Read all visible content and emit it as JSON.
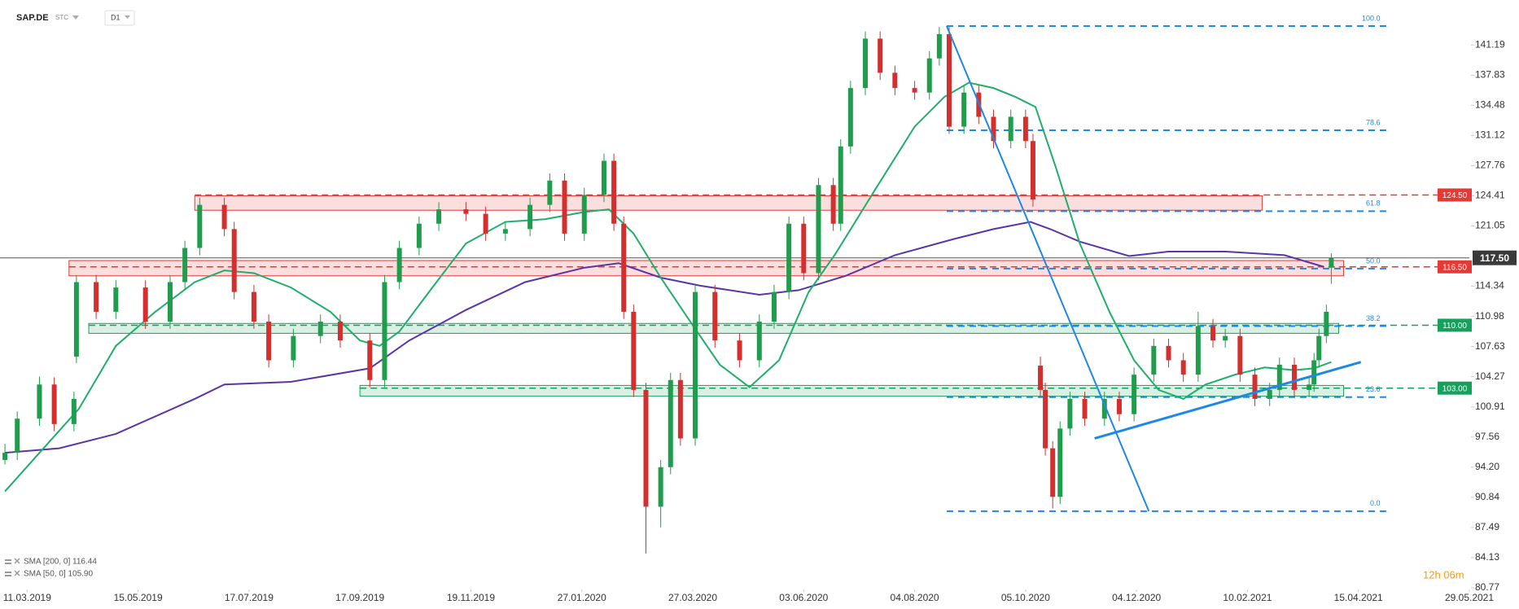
{
  "chart_data": {
    "type": "candlestick",
    "title": "SAP.DE",
    "source": "STC",
    "interval": "D1",
    "countdown": "12h 06m",
    "xlim": [
      -11,
      585
    ],
    "ylim": [
      80.77,
      146.2
    ],
    "xticks": [
      {
        "value": 0,
        "label": "11.03.2019"
      },
      {
        "value": 45,
        "label": "15.05.2019"
      },
      {
        "value": 90,
        "label": "17.07.2019"
      },
      {
        "value": 135,
        "label": "17.09.2019"
      },
      {
        "value": 180,
        "label": "19.11.2019"
      },
      {
        "value": 225,
        "label": "27.01.2020"
      },
      {
        "value": 270,
        "label": "27.03.2020"
      },
      {
        "value": 315,
        "label": "03.06.2020"
      },
      {
        "value": 360,
        "label": "04.08.2020"
      },
      {
        "value": 405,
        "label": "05.10.2020"
      },
      {
        "value": 450,
        "label": "04.12.2020"
      },
      {
        "value": 495,
        "label": "10.02.2021"
      },
      {
        "value": 540,
        "label": "15.04.2021"
      },
      {
        "value": 585,
        "label": "29.05.2021"
      }
    ],
    "yticks": [
      141.19,
      137.83,
      134.48,
      131.12,
      127.76,
      124.41,
      121.05,
      114.34,
      110.98,
      107.63,
      104.27,
      100.91,
      97.56,
      {
        "value": 94.2,
        "label": "94.20"
      },
      90.84,
      87.49,
      84.13,
      80.77
    ],
    "up_color": "#1f9d4c",
    "down_color": "#d32f2f",
    "candles": [
      {
        "x": -9,
        "open": 95.0,
        "high": 96.8,
        "low": 94.5,
        "close": 95.8
      },
      {
        "x": -4,
        "open": 95.8,
        "high": 100.4,
        "low": 95.0,
        "close": 99.6
      },
      {
        "x": 5,
        "open": 99.6,
        "high": 104.3,
        "low": 98.8,
        "close": 103.4
      },
      {
        "x": 11,
        "open": 103.4,
        "high": 104.2,
        "low": 98.2,
        "close": 99.0
      },
      {
        "x": 19,
        "open": 99.0,
        "high": 102.6,
        "low": 98.2,
        "close": 101.8
      },
      {
        "x": 20,
        "open": 106.5,
        "high": 115.6,
        "low": 105.8,
        "close": 114.8
      },
      {
        "x": 28,
        "open": 114.8,
        "high": 115.6,
        "low": 110.7,
        "close": 111.5
      },
      {
        "x": 36,
        "open": 111.5,
        "high": 115.0,
        "low": 110.7,
        "close": 114.2
      },
      {
        "x": 48,
        "open": 114.2,
        "high": 115.0,
        "low": 109.6,
        "close": 110.4
      },
      {
        "x": 58,
        "open": 110.4,
        "high": 115.6,
        "low": 109.6,
        "close": 114.8
      },
      {
        "x": 64,
        "open": 114.8,
        "high": 119.4,
        "low": 114.0,
        "close": 118.6
      },
      {
        "x": 70,
        "open": 118.6,
        "high": 124.2,
        "low": 117.8,
        "close": 123.4
      },
      {
        "x": 80,
        "open": 123.4,
        "high": 124.2,
        "low": 119.9,
        "close": 120.7
      },
      {
        "x": 84,
        "open": 120.7,
        "high": 121.5,
        "low": 112.9,
        "close": 113.7
      },
      {
        "x": 92,
        "open": 113.7,
        "high": 114.5,
        "low": 109.6,
        "close": 110.4
      },
      {
        "x": 98,
        "open": 110.4,
        "high": 111.2,
        "low": 105.3,
        "close": 106.1
      },
      {
        "x": 108,
        "open": 106.1,
        "high": 109.6,
        "low": 105.3,
        "close": 108.8
      },
      {
        "x": 119,
        "open": 108.8,
        "high": 111.2,
        "low": 108.0,
        "close": 110.4
      },
      {
        "x": 127,
        "open": 110.4,
        "high": 111.2,
        "low": 107.5,
        "close": 108.3
      },
      {
        "x": 139,
        "open": 108.3,
        "high": 109.1,
        "low": 103.1,
        "close": 103.9
      },
      {
        "x": 145,
        "open": 103.9,
        "high": 115.6,
        "low": 103.1,
        "close": 114.8
      },
      {
        "x": 151,
        "open": 114.8,
        "high": 119.4,
        "low": 114.0,
        "close": 118.6
      },
      {
        "x": 159,
        "open": 118.6,
        "high": 122.1,
        "low": 117.8,
        "close": 121.3
      },
      {
        "x": 167,
        "open": 121.3,
        "high": 123.7,
        "low": 120.5,
        "close": 122.9
      },
      {
        "x": 178,
        "open": 122.9,
        "high": 123.7,
        "low": 121.6,
        "close": 122.4
      },
      {
        "x": 186,
        "open": 122.4,
        "high": 123.2,
        "low": 119.4,
        "close": 120.2
      },
      {
        "x": 194,
        "open": 120.2,
        "high": 121.5,
        "low": 119.4,
        "close": 120.7
      },
      {
        "x": 204,
        "open": 120.7,
        "high": 124.2,
        "low": 119.9,
        "close": 123.4
      },
      {
        "x": 212,
        "open": 123.4,
        "high": 126.9,
        "low": 122.6,
        "close": 126.1
      },
      {
        "x": 218,
        "open": 126.1,
        "high": 126.9,
        "low": 119.4,
        "close": 120.2
      },
      {
        "x": 226,
        "open": 120.2,
        "high": 125.3,
        "low": 119.4,
        "close": 124.5
      },
      {
        "x": 234,
        "open": 124.5,
        "high": 129.1,
        "low": 123.7,
        "close": 128.3
      },
      {
        "x": 238,
        "open": 128.3,
        "high": 129.1,
        "low": 120.5,
        "close": 121.3
      },
      {
        "x": 242,
        "open": 121.3,
        "high": 122.1,
        "low": 110.7,
        "close": 111.5
      },
      {
        "x": 246,
        "open": 111.5,
        "high": 112.3,
        "low": 102.0,
        "close": 102.8
      },
      {
        "x": 251,
        "open": 102.8,
        "high": 103.6,
        "low": 84.6,
        "close": 89.8
      },
      {
        "x": 257,
        "open": 89.8,
        "high": 95.0,
        "low": 87.5,
        "close": 94.2
      },
      {
        "x": 261,
        "open": 94.2,
        "high": 104.7,
        "low": 93.4,
        "close": 103.9
      },
      {
        "x": 265,
        "open": 103.9,
        "high": 104.7,
        "low": 96.6,
        "close": 97.4
      },
      {
        "x": 271,
        "open": 97.4,
        "high": 114.5,
        "low": 96.6,
        "close": 113.7
      },
      {
        "x": 279,
        "open": 113.7,
        "high": 114.5,
        "low": 107.5,
        "close": 108.3
      },
      {
        "x": 289,
        "open": 108.3,
        "high": 109.1,
        "low": 105.3,
        "close": 106.1
      },
      {
        "x": 297,
        "open": 106.1,
        "high": 111.2,
        "low": 105.3,
        "close": 110.4
      },
      {
        "x": 303,
        "open": 110.4,
        "high": 114.5,
        "low": 109.6,
        "close": 113.7
      },
      {
        "x": 309,
        "open": 113.7,
        "high": 122.1,
        "low": 112.9,
        "close": 121.3
      },
      {
        "x": 315,
        "open": 121.3,
        "high": 122.1,
        "low": 115.0,
        "close": 115.8
      },
      {
        "x": 321,
        "open": 115.8,
        "high": 126.4,
        "low": 115.0,
        "close": 125.6
      },
      {
        "x": 327,
        "open": 125.6,
        "high": 126.4,
        "low": 120.5,
        "close": 121.3
      },
      {
        "x": 330,
        "open": 121.3,
        "high": 130.7,
        "low": 120.5,
        "close": 129.9
      },
      {
        "x": 334,
        "open": 129.9,
        "high": 137.2,
        "low": 129.1,
        "close": 136.4
      },
      {
        "x": 340,
        "open": 136.4,
        "high": 142.7,
        "low": 135.6,
        "close": 141.9
      },
      {
        "x": 346,
        "open": 141.9,
        "high": 142.7,
        "low": 137.3,
        "close": 138.1
      },
      {
        "x": 352,
        "open": 138.1,
        "high": 138.9,
        "low": 135.6,
        "close": 136.4
      },
      {
        "x": 360,
        "open": 136.4,
        "high": 137.2,
        "low": 135.1,
        "close": 135.9
      },
      {
        "x": 366,
        "open": 135.9,
        "high": 140.5,
        "low": 135.1,
        "close": 139.7
      },
      {
        "x": 370,
        "open": 139.7,
        "high": 143.2,
        "low": 138.9,
        "close": 142.4
      },
      {
        "x": 374,
        "open": 142.4,
        "high": 143.2,
        "low": 131.3,
        "close": 132.1
      },
      {
        "x": 380,
        "open": 132.1,
        "high": 136.7,
        "low": 131.3,
        "close": 135.9
      },
      {
        "x": 386,
        "open": 135.9,
        "high": 136.7,
        "low": 132.4,
        "close": 133.2
      },
      {
        "x": 392,
        "open": 133.2,
        "high": 134.0,
        "low": 129.7,
        "close": 130.5
      },
      {
        "x": 399,
        "open": 130.5,
        "high": 134.0,
        "low": 129.7,
        "close": 133.2
      },
      {
        "x": 405,
        "open": 133.2,
        "high": 134.0,
        "low": 129.7,
        "close": 130.5
      },
      {
        "x": 408,
        "open": 130.5,
        "high": 131.3,
        "low": 123.2,
        "close": 124.0
      },
      {
        "x": 411,
        "open": 105.5,
        "high": 106.5,
        "low": 102.0,
        "close": 102.8
      },
      {
        "x": 413,
        "open": 102.8,
        "high": 103.6,
        "low": 95.5,
        "close": 96.3
      },
      {
        "x": 416,
        "open": 96.3,
        "high": 97.1,
        "low": 89.6,
        "close": 90.9
      },
      {
        "x": 419,
        "open": 90.9,
        "high": 99.3,
        "low": 90.1,
        "close": 98.5
      },
      {
        "x": 423,
        "open": 98.5,
        "high": 102.6,
        "low": 97.7,
        "close": 101.8
      },
      {
        "x": 429,
        "open": 101.8,
        "high": 102.6,
        "low": 98.8,
        "close": 99.6
      },
      {
        "x": 437,
        "open": 99.6,
        "high": 102.6,
        "low": 98.8,
        "close": 101.8
      },
      {
        "x": 443,
        "open": 101.8,
        "high": 102.6,
        "low": 99.3,
        "close": 100.1
      },
      {
        "x": 449,
        "open": 100.1,
        "high": 105.3,
        "low": 99.3,
        "close": 104.5
      },
      {
        "x": 457,
        "open": 104.5,
        "high": 108.5,
        "low": 103.7,
        "close": 107.7
      },
      {
        "x": 463,
        "open": 107.7,
        "high": 108.5,
        "low": 105.3,
        "close": 106.1
      },
      {
        "x": 469,
        "open": 106.1,
        "high": 106.9,
        "low": 103.7,
        "close": 104.5
      },
      {
        "x": 475,
        "open": 104.5,
        "high": 111.5,
        "low": 103.7,
        "close": 109.9
      },
      {
        "x": 481,
        "open": 109.9,
        "high": 110.7,
        "low": 107.5,
        "close": 108.3
      },
      {
        "x": 486,
        "open": 108.3,
        "high": 109.6,
        "low": 107.5,
        "close": 108.8
      },
      {
        "x": 492,
        "open": 108.8,
        "high": 109.6,
        "low": 103.7,
        "close": 104.5
      },
      {
        "x": 498,
        "open": 104.5,
        "high": 105.3,
        "low": 101.0,
        "close": 101.8
      },
      {
        "x": 504,
        "open": 101.8,
        "high": 103.6,
        "low": 101.0,
        "close": 102.8
      },
      {
        "x": 508,
        "open": 102.8,
        "high": 106.4,
        "low": 102.0,
        "close": 105.6
      },
      {
        "x": 514,
        "open": 105.6,
        "high": 106.4,
        "low": 102.0,
        "close": 102.8
      },
      {
        "x": 520,
        "open": 102.8,
        "high": 104.2,
        "low": 102.0,
        "close": 103.4
      },
      {
        "x": 522,
        "open": 103.4,
        "high": 106.9,
        "low": 102.6,
        "close": 106.1
      },
      {
        "x": 524,
        "open": 106.1,
        "high": 109.6,
        "low": 105.3,
        "close": 108.8
      },
      {
        "x": 527,
        "open": 108.8,
        "high": 112.3,
        "low": 108.0,
        "close": 111.5
      },
      {
        "x": 529,
        "open": 116.4,
        "high": 118.0,
        "low": 114.6,
        "close": 117.5
      }
    ],
    "series": [
      {
        "name": "SMA [200, 0] 116.44",
        "color": "#5b35a8",
        "x": [
          -9,
          13,
          36,
          68,
          80,
          107,
          139,
          155,
          178,
          202,
          226,
          240,
          257,
          273,
          297,
          313,
          332,
          352,
          376,
          392,
          407,
          415,
          427,
          447,
          463,
          486,
          510,
          526
        ],
        "values": [
          95.8,
          96.3,
          97.9,
          101.8,
          103.4,
          103.7,
          105.2,
          108.3,
          111.7,
          114.8,
          116.4,
          116.9,
          115.3,
          114.4,
          113.4,
          113.9,
          115.5,
          117.8,
          119.6,
          120.7,
          121.5,
          120.7,
          119.3,
          117.7,
          118.2,
          118.2,
          117.8,
          116.5
        ]
      },
      {
        "name": "SMA [50, 0] 105.90",
        "color": "#1fae6b",
        "x": [
          -9,
          5,
          21,
          36,
          52,
          68,
          80,
          92,
          107,
          123,
          135,
          143,
          151,
          163,
          178,
          194,
          210,
          226,
          236,
          246,
          257,
          269,
          281,
          293,
          305,
          317,
          328,
          344,
          360,
          372,
          382,
          392,
          401,
          409,
          417,
          427,
          439,
          449,
          459,
          469,
          478,
          490,
          502,
          514,
          522,
          529
        ],
        "values": [
          91.5,
          95.8,
          100.7,
          107.7,
          111.5,
          114.8,
          116.1,
          115.8,
          114.2,
          111.5,
          108.3,
          107.7,
          109.3,
          113.7,
          119.1,
          121.5,
          121.8,
          122.6,
          122.9,
          120.2,
          115.3,
          110.4,
          105.6,
          103.1,
          106.1,
          113.7,
          118.0,
          125.1,
          132.1,
          135.4,
          137.0,
          136.4,
          135.4,
          134.3,
          127.8,
          119.1,
          111.5,
          106.1,
          102.8,
          101.8,
          103.4,
          104.5,
          105.3,
          105.0,
          105.2,
          105.9
        ]
      }
    ],
    "levels": [
      {
        "value": 124.5,
        "label": "124.50",
        "color": "#e53935",
        "zone": [
          122.8,
          124.4
        ],
        "start": 68,
        "end": 501
      },
      {
        "value": 116.5,
        "label": "116.50",
        "color": "#e53935",
        "zone": [
          115.5,
          117.2
        ],
        "start": 17,
        "end": 534
      },
      {
        "value": 110.0,
        "label": "110.00",
        "color": "#16a05d",
        "zone": [
          109.1,
          110.2
        ],
        "start": 25,
        "end": 532
      },
      {
        "value": 103.0,
        "label": "103.00",
        "color": "#16a05d",
        "zone": [
          102.1,
          103.3
        ],
        "start": 135,
        "end": 534
      }
    ],
    "last": {
      "value": 117.5,
      "label": "117.50"
    },
    "fibonacci": {
      "start": 373,
      "end": 551.5,
      "color": "#1e88e5",
      "levels": [
        {
          "label": "100.0",
          "value": 143.3
        },
        {
          "label": "78.6",
          "value": 131.7
        },
        {
          "label": "61.8",
          "value": 122.7
        },
        {
          "label": "50.0",
          "value": 116.3
        },
        {
          "label": "38.2",
          "value": 109.9
        },
        {
          "label": "23.6",
          "value": 102.0
        },
        {
          "label": "0.0",
          "value": 89.3
        }
      ]
    },
    "trendlines": [
      {
        "color": "#1e88e5",
        "x": [
          373,
          455
        ],
        "y": [
          143.3,
          89.3
        ]
      },
      {
        "color": "#1e88e5",
        "x": [
          433,
          541
        ],
        "y": [
          97.4,
          105.9
        ]
      }
    ]
  }
}
